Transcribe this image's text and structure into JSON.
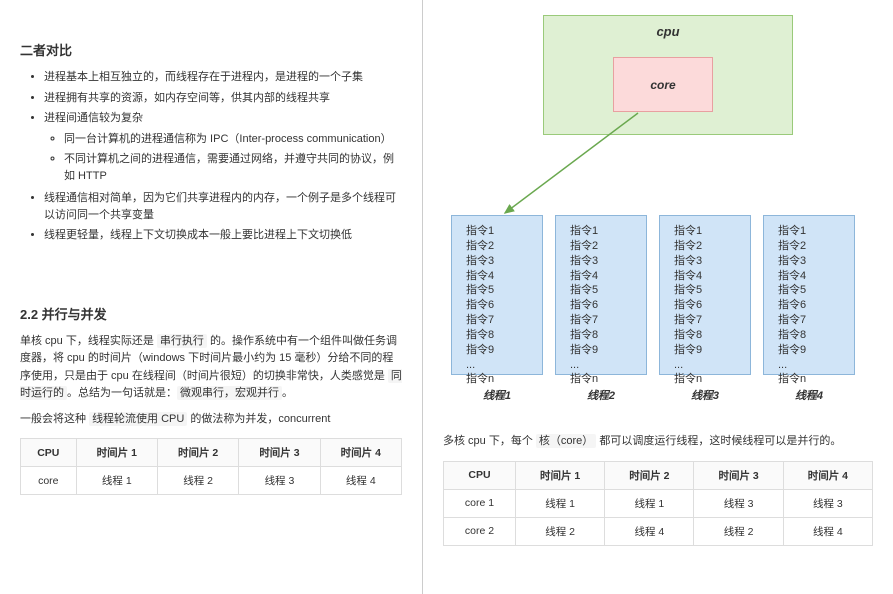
{
  "left": {
    "h1": "二者对比",
    "bullets": [
      "进程基本上相互独立的，而线程存在于进程内，是进程的一个子集",
      "进程拥有共享的资源，如内存空间等，供其内部的线程共享",
      "进程间通信较为复杂"
    ],
    "sub_bullets": [
      "同一台计算机的进程通信称为 IPC（Inter-process communication）",
      "不同计算机之间的进程通信，需要通过网络，并遵守共同的协议，例如 HTTP"
    ],
    "bullets2": [
      "线程通信相对简单，因为它们共享进程内的内存，一个例子是多个线程可以访问同一个共享变量",
      "线程更轻量，线程上下文切换成本一般上要比进程上下文切换低"
    ],
    "h2": "2.2 并行与并发",
    "p1a": "单核 cpu 下，线程实际还是 ",
    "p1_hl1": "串行执行",
    "p1b": " 的。操作系统中有一个组件叫做任务调度器，将 cpu 的时间片（windows 下时间片最小约为 15 毫秒）分给不同的程序使用，只是由于 cpu 在线程间（时间片很短）的切换非常快，人类感觉是 ",
    "p1_hl2": "同时运行的",
    "p1c": "。总结为一句话就是：",
    "p1_hl3": "微观串行，宏观并行",
    "p1d": "。",
    "p2a": "一般会将这种 ",
    "p2_hl": "线程轮流使用 CPU",
    "p2b": " 的做法称为并发，concurrent",
    "table1": {
      "headers": [
        "CPU",
        "时间片 1",
        "时间片 2",
        "时间片 3",
        "时间片 4"
      ],
      "row": [
        "core",
        "线程 1",
        "线程 2",
        "线程 3",
        "线程 4"
      ]
    }
  },
  "right": {
    "cpu_label": "cpu",
    "core_label": "core",
    "instructions": [
      "指令1",
      "指令2",
      "指令3",
      "指令4",
      "指令5",
      "指令6",
      "指令7",
      "指令8",
      "指令9",
      "...",
      "指令n"
    ],
    "thread_labels": [
      "线程1",
      "线程2",
      "线程3",
      "线程4"
    ],
    "p1a": "多核 cpu 下，每个 ",
    "p1_hl": "核（core）",
    "p1b": " 都可以调度运行线程，这时候线程可以是并行的。",
    "table2": {
      "headers": [
        "CPU",
        "时间片 1",
        "时间片 2",
        "时间片 3",
        "时间片 4"
      ],
      "rows": [
        [
          "core 1",
          "线程 1",
          "线程 1",
          "线程 3",
          "线程 3"
        ],
        [
          "core 2",
          "线程 2",
          "线程 4",
          "线程 2",
          "线程 4"
        ]
      ]
    },
    "colors": {
      "cpu_bg": "#dff0d3",
      "cpu_border": "#9aca7a",
      "core_bg": "#fcdada",
      "core_border": "#e8a0a0",
      "thread_bg": "#d0e4f7",
      "thread_border": "#8db6da",
      "arrow": "#6aa84f"
    }
  }
}
